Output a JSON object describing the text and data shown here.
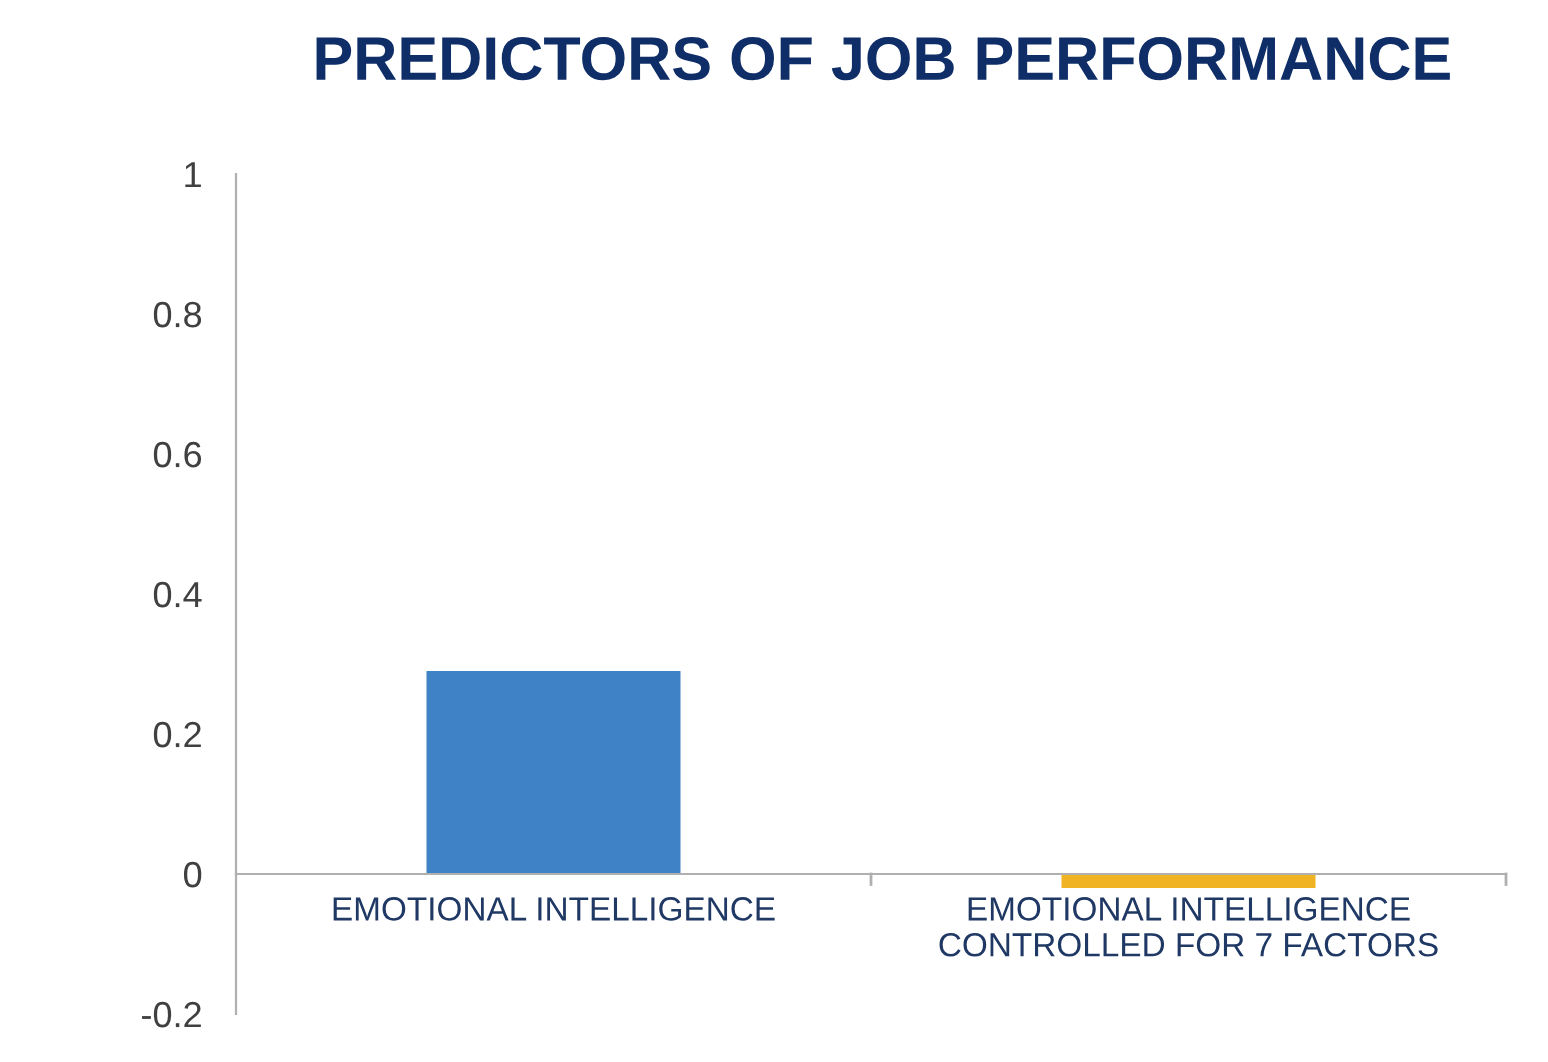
{
  "chart_data": {
    "type": "bar",
    "title": "PREDICTORS OF JOB PERFORMANCE",
    "categories": [
      "EMOTIONAL INTELLIGENCE",
      "EMOTIONAL INTELLIGENCE\nCONTROLLED FOR 7 FACTORS"
    ],
    "values": [
      0.29,
      -0.02
    ],
    "colors": [
      "#3f83c6",
      "#f0b323"
    ],
    "ylim": [
      -0.2,
      1
    ],
    "yticks": [
      -0.2,
      0,
      0.2,
      0.4,
      0.6,
      0.8,
      1
    ],
    "grid": false,
    "legend": false
  }
}
